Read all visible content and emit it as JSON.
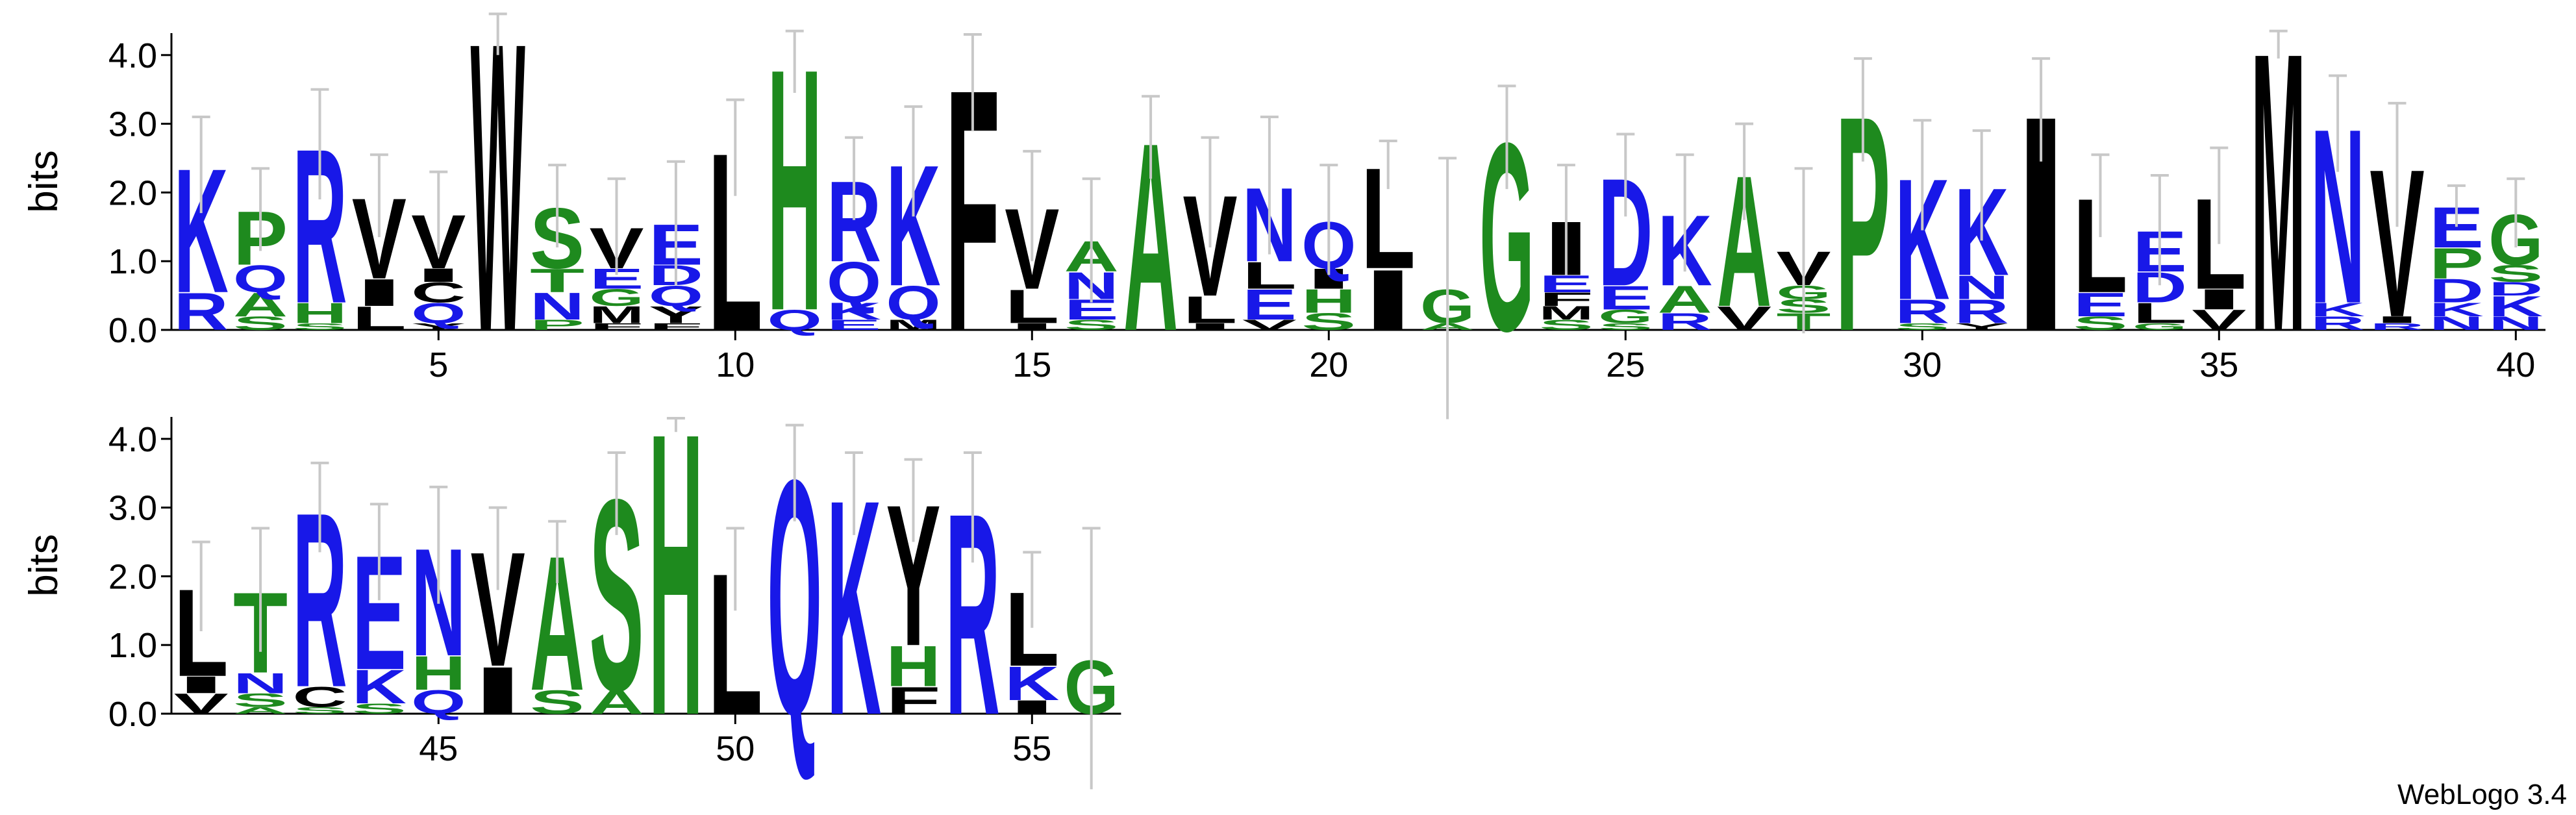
{
  "chart_data": [
    {
      "type": "logo",
      "ylabel": "bits",
      "xlim": [
        0.5,
        40.5
      ],
      "ylim": [
        0,
        4.32
      ],
      "yticks": [
        {
          "value": 0,
          "label": "0.0"
        },
        {
          "value": 1,
          "label": "1.0"
        },
        {
          "value": 2,
          "label": "2.0"
        },
        {
          "value": 3,
          "label": "3.0"
        },
        {
          "value": 4,
          "label": "4.0"
        }
      ],
      "xticks": [
        5,
        10,
        15,
        20,
        25,
        30,
        35,
        40
      ],
      "positions": [
        {
          "x": 1,
          "stack": [
            [
              "R",
              0.55
            ],
            [
              "K",
              1.85
            ]
          ],
          "error": 0.7
        },
        {
          "x": 2,
          "stack": [
            [
              "S",
              0.2
            ],
            [
              "A",
              0.35
            ],
            [
              "Q",
              0.4
            ],
            [
              "P",
              0.8
            ]
          ],
          "error": 0.6
        },
        {
          "x": 3,
          "stack": [
            [
              "S",
              0.1
            ],
            [
              "H",
              0.3
            ],
            [
              "R",
              2.3
            ]
          ],
          "error": 0.8
        },
        {
          "x": 4,
          "stack": [
            [
              "L",
              0.35
            ],
            [
              "I",
              0.4
            ],
            [
              "V",
              1.2
            ]
          ],
          "error": 0.6
        },
        {
          "x": 5,
          "stack": [
            [
              "Y",
              0.1
            ],
            [
              "Q",
              0.3
            ],
            [
              "C",
              0.3
            ],
            [
              "I",
              0.2
            ],
            [
              "V",
              0.8
            ]
          ],
          "error": 0.6
        },
        {
          "x": 6,
          "stack": [
            [
              "W",
              4.3
            ]
          ],
          "error": 0.3
        },
        {
          "x": 7,
          "stack": [
            [
              "P",
              0.15
            ],
            [
              "N",
              0.4
            ],
            [
              "T",
              0.35
            ],
            [
              "S",
              0.9
            ]
          ],
          "error": 0.6
        },
        {
          "x": 8,
          "stack": [
            [
              "F",
              0.1
            ],
            [
              "M",
              0.25
            ],
            [
              "G",
              0.25
            ],
            [
              "E",
              0.3
            ],
            [
              "V",
              0.6
            ]
          ],
          "error": 0.7
        },
        {
          "x": 9,
          "stack": [
            [
              "F",
              0.1
            ],
            [
              "Y",
              0.25
            ],
            [
              "Q",
              0.3
            ],
            [
              "D",
              0.3
            ],
            [
              "E",
              0.6
            ]
          ],
          "error": 0.9
        },
        {
          "x": 10,
          "stack": [
            [
              "L",
              2.65
            ]
          ],
          "error": 0.7
        },
        {
          "x": 11,
          "stack": [
            [
              "Q",
              0.3
            ],
            [
              "H",
              3.6
            ]
          ],
          "error": 0.45
        },
        {
          "x": 12,
          "stack": [
            [
              "E",
              0.15
            ],
            [
              "K",
              0.25
            ],
            [
              "Q",
              0.6
            ],
            [
              "R",
              1.2
            ]
          ],
          "error": 0.6
        },
        {
          "x": 13,
          "stack": [
            [
              "M",
              0.15
            ],
            [
              "Q",
              0.5
            ],
            [
              "K",
              1.8
            ]
          ],
          "error": 0.8
        },
        {
          "x": 14,
          "stack": [
            [
              "F",
              3.6
            ]
          ],
          "error": 0.7
        },
        {
          "x": 15,
          "stack": [
            [
              "I",
              0.1
            ],
            [
              "L",
              0.5
            ],
            [
              "V",
              1.2
            ]
          ],
          "error": 0.8
        },
        {
          "x": 16,
          "stack": [
            [
              "S",
              0.15
            ],
            [
              "E",
              0.3
            ],
            [
              "N",
              0.4
            ],
            [
              "A",
              0.45
            ]
          ],
          "error": 0.9
        },
        {
          "x": 17,
          "stack": [
            [
              "A",
              2.8
            ]
          ],
          "error": 0.6
        },
        {
          "x": 18,
          "stack": [
            [
              "I",
              0.1
            ],
            [
              "L",
              0.4
            ],
            [
              "V",
              1.5
            ]
          ],
          "error": 0.8
        },
        {
          "x": 19,
          "stack": [
            [
              "V",
              0.15
            ],
            [
              "E",
              0.45
            ],
            [
              "L",
              0.4
            ],
            [
              "N",
              1.1
            ]
          ],
          "error": 1.0
        },
        {
          "x": 20,
          "stack": [
            [
              "S",
              0.25
            ],
            [
              "H",
              0.35
            ],
            [
              "I",
              0.3
            ],
            [
              "Q",
              0.7
            ]
          ],
          "error": 0.8
        },
        {
          "x": 21,
          "stack": [
            [
              "I",
              0.9
            ],
            [
              "L",
              1.5
            ]
          ],
          "error": 0.35
        },
        {
          "x": 22,
          "stack": [
            [
              "A",
              0.1
            ],
            [
              "G",
              0.5
            ]
          ],
          "error": 1.9
        },
        {
          "x": 23,
          "stack": [
            [
              "G",
              2.8
            ]
          ],
          "error": 0.75
        },
        {
          "x": 24,
          "stack": [
            [
              "S",
              0.15
            ],
            [
              "M",
              0.2
            ],
            [
              "F",
              0.2
            ],
            [
              "E",
              0.25
            ],
            [
              "I",
              0.8
            ]
          ],
          "error": 0.8
        },
        {
          "x": 25,
          "stack": [
            [
              "S",
              0.1
            ],
            [
              "G",
              0.2
            ],
            [
              "E",
              0.35
            ],
            [
              "D",
              1.6
            ]
          ],
          "error": 0.6
        },
        {
          "x": 26,
          "stack": [
            [
              "R",
              0.25
            ],
            [
              "A",
              0.4
            ],
            [
              "K",
              1.05
            ]
          ],
          "error": 0.85
        },
        {
          "x": 27,
          "stack": [
            [
              "V",
              0.35
            ],
            [
              "A",
              1.95
            ]
          ],
          "error": 0.7
        },
        {
          "x": 28,
          "stack": [
            [
              "T",
              0.25
            ],
            [
              "S",
              0.2
            ],
            [
              "G",
              0.2
            ],
            [
              "V",
              0.5
            ]
          ],
          "error": 1.2
        },
        {
          "x": 29,
          "stack": [
            [
              "P",
              3.2
            ]
          ],
          "error": 0.75
        },
        {
          "x": 30,
          "stack": [
            [
              "S",
              0.1
            ],
            [
              "R",
              0.35
            ],
            [
              "K",
              1.8
            ]
          ],
          "error": 0.8
        },
        {
          "x": 31,
          "stack": [
            [
              "Y",
              0.1
            ],
            [
              "R",
              0.35
            ],
            [
              "N",
              0.35
            ],
            [
              "K",
              1.3
            ]
          ],
          "error": 0.8
        },
        {
          "x": 32,
          "stack": [
            [
              "I",
              3.2
            ]
          ],
          "error": 0.75
        },
        {
          "x": 33,
          "stack": [
            [
              "S",
              0.2
            ],
            [
              "E",
              0.35
            ],
            [
              "L",
              1.4
            ]
          ],
          "error": 0.6
        },
        {
          "x": 34,
          "stack": [
            [
              "G",
              0.1
            ],
            [
              "L",
              0.3
            ],
            [
              "D",
              0.45
            ],
            [
              "E",
              0.6
            ]
          ],
          "error": 0.8
        },
        {
          "x": 35,
          "stack": [
            [
              "V",
              0.3
            ],
            [
              "I",
              0.3
            ],
            [
              "L",
              1.35
            ]
          ],
          "error": 0.7
        },
        {
          "x": 36,
          "stack": [
            [
              "M",
              4.15
            ]
          ],
          "error": 0.2
        },
        {
          "x": 37,
          "stack": [
            [
              "R",
              0.2
            ],
            [
              "K",
              0.2
            ],
            [
              "N",
              2.6
            ]
          ],
          "error": 0.7
        },
        {
          "x": 38,
          "stack": [
            [
              "R",
              0.1
            ],
            [
              "I",
              0.1
            ],
            [
              "V",
              2.2
            ]
          ],
          "error": 0.9
        },
        {
          "x": 39,
          "stack": [
            [
              "N",
              0.2
            ],
            [
              "K",
              0.2
            ],
            [
              "D",
              0.35
            ],
            [
              "P",
              0.45
            ],
            [
              "E",
              0.6
            ]
          ],
          "error": 0.3
        },
        {
          "x": 40,
          "stack": [
            [
              "N",
              0.2
            ],
            [
              "K",
              0.3
            ],
            [
              "D",
              0.2
            ],
            [
              "S",
              0.25
            ],
            [
              "G",
              0.75
            ]
          ],
          "error": 0.5
        }
      ]
    },
    {
      "type": "logo",
      "ylabel": "bits",
      "xlim": [
        40.5,
        56.5
      ],
      "ylim": [
        0,
        4.32
      ],
      "yticks": [
        {
          "value": 0,
          "label": "0.0"
        },
        {
          "value": 1,
          "label": "1.0"
        },
        {
          "value": 2,
          "label": "2.0"
        },
        {
          "value": 3,
          "label": "3.0"
        },
        {
          "value": 4,
          "label": "4.0"
        }
      ],
      "xticks": [
        45,
        50,
        55
      ],
      "positions": [
        {
          "x": 41,
          "stack": [
            [
              "V",
              0.3
            ],
            [
              "I",
              0.25
            ],
            [
              "L",
              1.3
            ]
          ],
          "error": 0.65
        },
        {
          "x": 42,
          "stack": [
            [
              "A",
              0.1
            ],
            [
              "S",
              0.2
            ],
            [
              "N",
              0.3
            ],
            [
              "T",
              1.2
            ]
          ],
          "error": 0.9
        },
        {
          "x": 43,
          "stack": [
            [
              "S",
              0.1
            ],
            [
              "C",
              0.3
            ],
            [
              "R",
              2.6
            ]
          ],
          "error": 0.65
        },
        {
          "x": 44,
          "stack": [
            [
              "S",
              0.15
            ],
            [
              "K",
              0.5
            ],
            [
              "E",
              1.7
            ]
          ],
          "error": 0.7
        },
        {
          "x": 45,
          "stack": [
            [
              "Q",
              0.35
            ],
            [
              "H",
              0.5
            ],
            [
              "N",
              1.6
            ]
          ],
          "error": 0.85
        },
        {
          "x": 46,
          "stack": [
            [
              "I",
              0.7
            ],
            [
              "V",
              1.7
            ]
          ],
          "error": 0.6
        },
        {
          "x": 47,
          "stack": [
            [
              "S",
              0.35
            ],
            [
              "A",
              2.0
            ]
          ],
          "error": 0.45
        },
        {
          "x": 48,
          "stack": [
            [
              "A",
              0.35
            ],
            [
              "S",
              2.85
            ]
          ],
          "error": 0.6
        },
        {
          "x": 49,
          "stack": [
            [
              "H",
              4.2
            ]
          ],
          "error": 0.1
        },
        {
          "x": 50,
          "stack": [
            [
              "L",
              2.1
            ]
          ],
          "error": 0.6
        },
        {
          "x": 51,
          "stack": [
            [
              "Q",
              3.5
            ]
          ],
          "error": 0.7
        },
        {
          "x": 52,
          "stack": [
            [
              "K",
              3.2
            ]
          ],
          "error": 0.6
        },
        {
          "x": 53,
          "stack": [
            [
              "F",
              0.4
            ],
            [
              "H",
              0.6
            ],
            [
              "Y",
              2.1
            ]
          ],
          "error": 0.6
        },
        {
          "x": 54,
          "stack": [
            [
              "R",
              3.0
            ]
          ],
          "error": 0.8
        },
        {
          "x": 55,
          "stack": [
            [
              "I",
              0.2
            ],
            [
              "K",
              0.5
            ],
            [
              "L",
              1.1
            ]
          ],
          "error": 0.55
        },
        {
          "x": 56,
          "stack": [
            [
              "G",
              0.8
            ]
          ],
          "error": 1.9
        }
      ]
    }
  ],
  "letter_colors": {
    "#1818e8": "KRQNEDB",
    "#1e8a1e": "GSTAPH",
    "#000000": "VLIFWMYC"
  },
  "footer": "WebLogo 3.4"
}
